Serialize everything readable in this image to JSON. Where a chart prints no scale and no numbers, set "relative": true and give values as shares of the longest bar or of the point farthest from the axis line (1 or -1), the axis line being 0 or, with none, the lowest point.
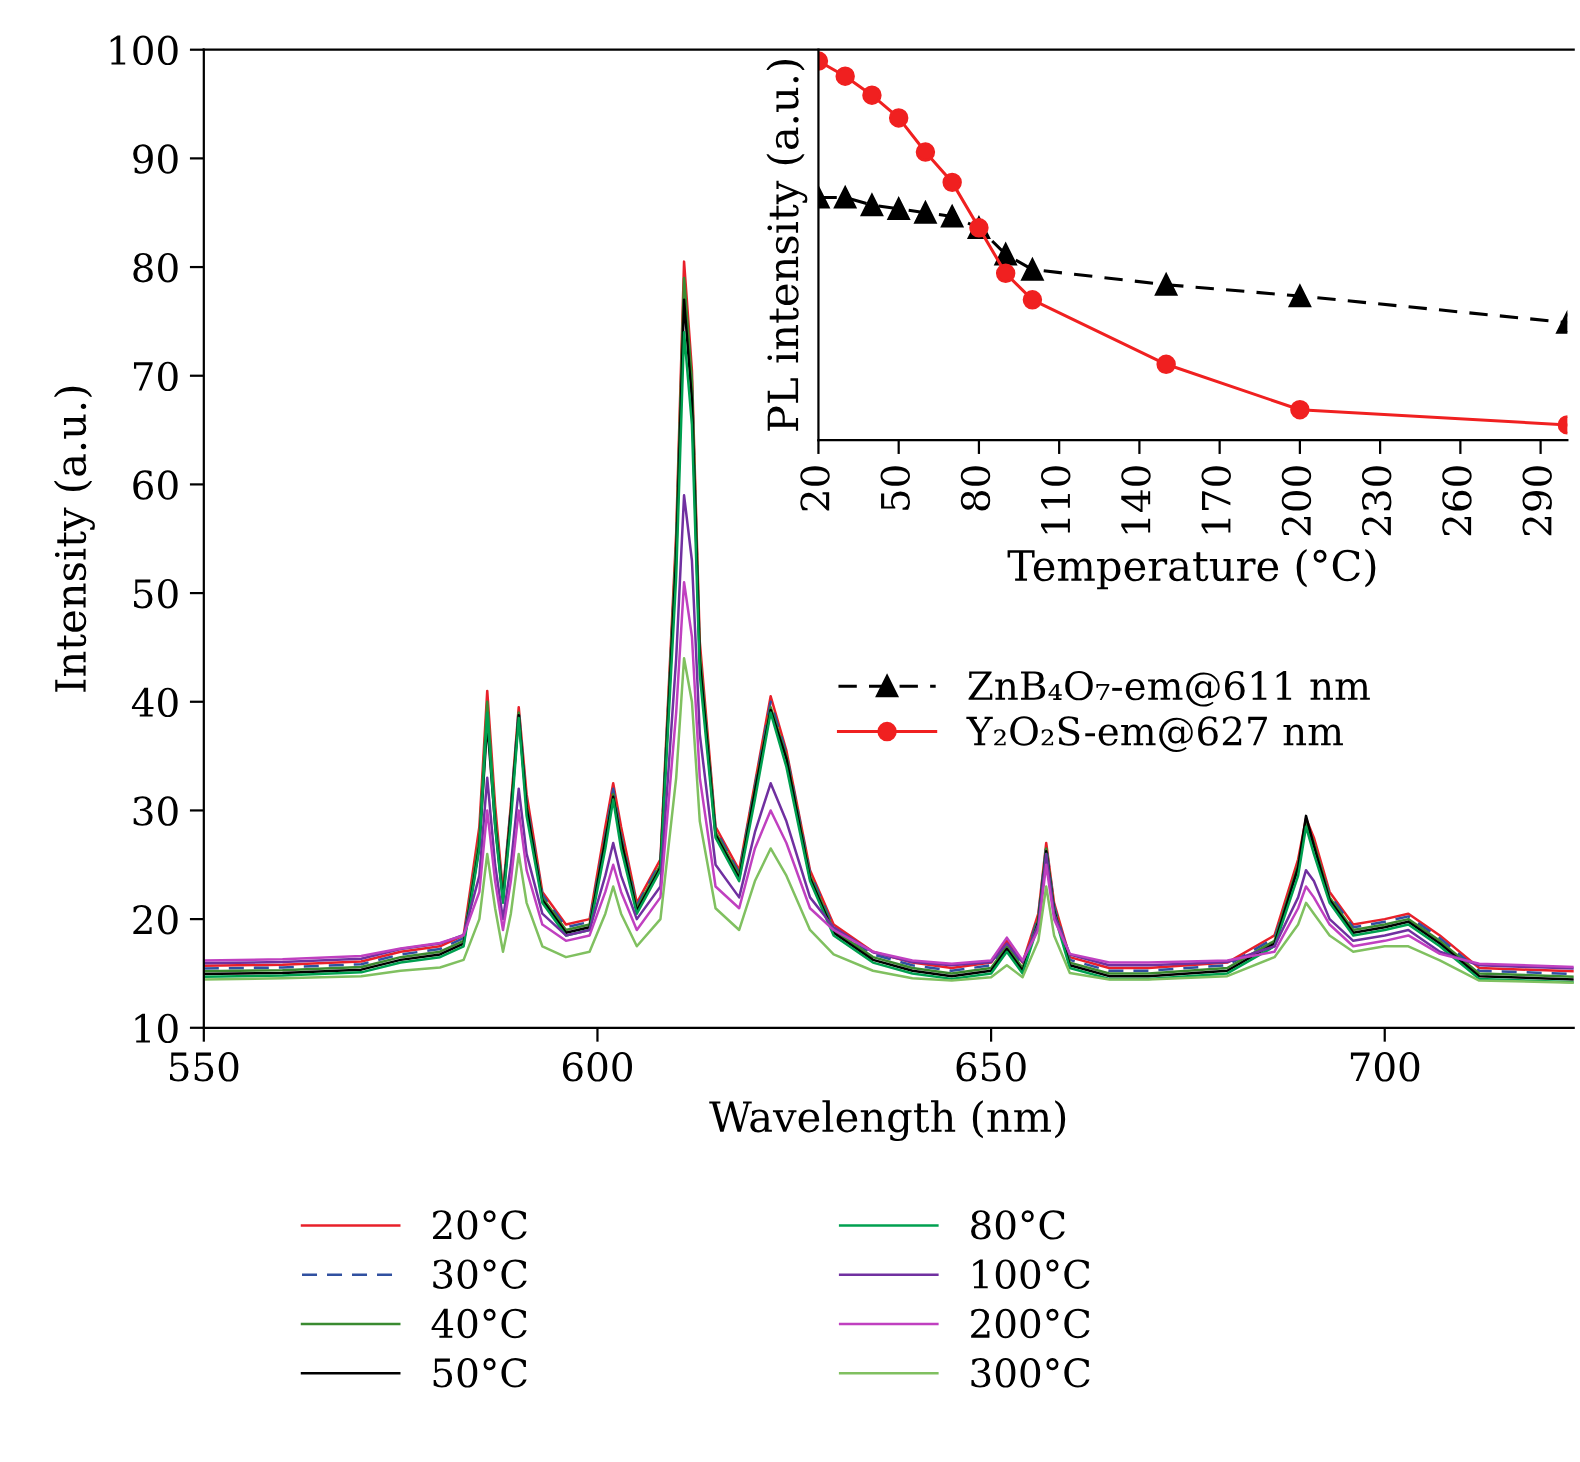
{
  "chart_data": [
    {
      "type": "line",
      "xlabel": "Wavelength (nm)",
      "ylabel": "Intensity (a.u.)",
      "xlim": [
        550,
        724
      ],
      "xticks": [
        550,
        600,
        650,
        700
      ],
      "ylim": [
        10,
        100
      ],
      "yticks": [
        10,
        20,
        30,
        40,
        50,
        60,
        70,
        80,
        90,
        100
      ],
      "legend": "bottom",
      "marker": "none",
      "x": [
        550,
        560,
        570,
        575,
        580,
        583,
        585,
        586,
        587,
        588,
        589,
        590,
        591,
        593,
        596,
        599,
        601,
        602,
        603,
        605,
        608,
        610,
        611,
        612,
        613,
        615,
        618,
        620,
        622,
        624,
        627,
        630,
        635,
        640,
        645,
        650,
        652,
        654,
        656,
        657,
        658,
        660,
        665,
        670,
        680,
        686,
        689,
        690,
        691,
        693,
        696,
        700,
        703,
        707,
        712,
        724
      ],
      "series": [
        {
          "name": "20°C",
          "color": "#e8202a",
          "line_style": "solid",
          "values": [
            15.7,
            15.8,
            16.1,
            17.0,
            17.5,
            18.5,
            28.5,
            41,
            30.5,
            22.5,
            30.5,
            39.5,
            31.5,
            22.5,
            19.5,
            20,
            28.5,
            32.5,
            28.5,
            21.5,
            25.5,
            55.5,
            80.5,
            70.5,
            45.5,
            28.5,
            24.5,
            32.5,
            40.5,
            35.5,
            24.5,
            19.5,
            17,
            16,
            15.5,
            16,
            18,
            16,
            20.5,
            27,
            21.5,
            16.5,
            15.5,
            15.5,
            16,
            18.5,
            25.5,
            29.25,
            27.5,
            22.5,
            19.5,
            20,
            20.5,
            18.5,
            15.5,
            15.2
          ]
        },
        {
          "name": "30°C",
          "color": "#3050a0",
          "line_style": "dashed",
          "values": [
            15.45,
            15.55,
            15.85,
            16.75,
            17.25,
            18.25,
            27.25,
            39.5,
            29.25,
            22.25,
            30.25,
            39.25,
            30.75,
            22.25,
            19.25,
            19.75,
            27.75,
            32,
            27.75,
            21.25,
            25.25,
            54.25,
            78,
            69.25,
            44.25,
            28.25,
            24.25,
            32.25,
            40,
            35.25,
            24.25,
            19.25,
            16.75,
            15.75,
            15.25,
            15.75,
            17.75,
            15.75,
            20.25,
            26.75,
            21.25,
            16.25,
            15.25,
            15.25,
            15.75,
            18.25,
            24.75,
            28.75,
            26.75,
            22.25,
            19.25,
            19.75,
            20.25,
            18.25,
            15.25,
            14.95
          ]
        },
        {
          "name": "40°C",
          "color": "#3a8a30",
          "line_style": "solid",
          "values": [
            15.2,
            15.3,
            15.6,
            16.5,
            17.0,
            18.0,
            27.5,
            40,
            29.5,
            22,
            30,
            39,
            30.5,
            22,
            19,
            19.5,
            27.5,
            31.5,
            27.5,
            21,
            25,
            54.5,
            79,
            69.5,
            44.5,
            28,
            24,
            32,
            39.5,
            35,
            24,
            19,
            16.5,
            15.5,
            15,
            15.5,
            17.5,
            15.5,
            20,
            26.5,
            21,
            16,
            15,
            15,
            15.5,
            18,
            25,
            29,
            27,
            22,
            19,
            19.5,
            20,
            18,
            15,
            14.7
          ]
        },
        {
          "name": "50°C",
          "color": "#000000",
          "line_style": "solid",
          "values": [
            14.95,
            15.05,
            15.35,
            16.25,
            16.75,
            17.75,
            26.75,
            38,
            28.75,
            21.75,
            29.75,
            38.75,
            30.25,
            21.75,
            18.75,
            19.25,
            27.25,
            31.25,
            27.25,
            20.75,
            24.75,
            53.25,
            77,
            67.75,
            43.75,
            27.75,
            23.75,
            31.75,
            39.25,
            34.75,
            23.75,
            18.75,
            16.25,
            15.25,
            14.75,
            15.25,
            17.25,
            15.25,
            19.75,
            26.25,
            20.75,
            15.75,
            14.75,
            14.75,
            15.25,
            17.75,
            24.75,
            29.5,
            26.75,
            21.75,
            18.75,
            19.25,
            19.75,
            17.75,
            14.75,
            14.45
          ]
        },
        {
          "name": "80°C",
          "color": "#00a050",
          "line_style": "solid",
          "values": [
            14.7,
            14.8,
            15.1,
            16.0,
            16.5,
            17.5,
            26.5,
            39,
            28.5,
            21.5,
            29,
            38.5,
            29.5,
            21.5,
            18.5,
            19,
            26.5,
            31,
            26.5,
            20.5,
            24.5,
            51.5,
            74,
            65.5,
            42.5,
            27.5,
            23.5,
            31,
            39,
            34,
            23.5,
            18.5,
            16,
            15,
            14.5,
            15,
            17,
            15,
            19.5,
            26,
            20.5,
            15.5,
            14.5,
            14.5,
            15,
            17.5,
            24,
            28.5,
            26,
            21.5,
            18.5,
            19,
            19.5,
            17.5,
            14.5,
            14.2
          ]
        },
        {
          "name": "100°C",
          "color": "#7030a0",
          "line_style": "solid",
          "values": [
            15.95,
            16.05,
            16.35,
            17.25,
            17.75,
            18.55,
            24,
            33,
            25,
            20,
            25,
            32,
            26,
            20.5,
            18.5,
            19,
            24,
            27,
            24,
            20,
            23,
            44,
            59,
            53,
            37,
            25,
            22,
            28,
            32.5,
            29,
            22,
            19.25,
            16.95,
            16.05,
            15.75,
            16.05,
            17.75,
            16.05,
            19.5,
            26,
            20.5,
            16.75,
            15.75,
            15.75,
            16.05,
            17.5,
            22,
            24.5,
            23.5,
            20,
            18,
            18.5,
            19,
            17,
            15.75,
            15.45
          ]
        },
        {
          "name": "200°C",
          "color": "#c040c0",
          "line_style": "solid",
          "values": [
            16.2,
            16.3,
            16.6,
            17.3,
            17.8,
            18.5,
            22.5,
            30,
            23.5,
            19,
            23.5,
            30,
            24.5,
            19.5,
            18,
            18.5,
            22.5,
            25,
            22.5,
            19,
            22,
            39,
            51,
            46,
            33,
            23,
            21,
            26.5,
            30,
            27,
            21,
            19,
            17,
            16.2,
            15.9,
            16.2,
            18.3,
            16.2,
            19,
            25,
            20,
            16.8,
            16,
            16,
            16.2,
            17,
            21,
            23,
            22,
            19.5,
            17.5,
            18,
            18.5,
            16.8,
            15.9,
            15.6
          ]
        },
        {
          "name": "300°C",
          "color": "#80c060",
          "line_style": "solid",
          "values": [
            14.45,
            14.55,
            14.75,
            15.25,
            15.55,
            16.25,
            20,
            26,
            21,
            17,
            20.5,
            26,
            21.5,
            17.5,
            16.5,
            17,
            20.5,
            23,
            20.5,
            17.5,
            20,
            33,
            44,
            40,
            29,
            21,
            19,
            23.5,
            26.5,
            24,
            19,
            16.75,
            15.25,
            14.55,
            14.35,
            14.65,
            15.75,
            14.65,
            18,
            23,
            18.5,
            15.05,
            14.45,
            14.45,
            14.75,
            16.5,
            19.5,
            21.5,
            20.5,
            18.5,
            17,
            17.5,
            17.5,
            16.2,
            14.35,
            14.15
          ]
        }
      ]
    },
    {
      "type": "line",
      "xlabel": "Temperature (°C)",
      "ylabel": "PL intensity (a.u.)",
      "xlim": [
        20,
        300
      ],
      "xticks": [
        20,
        50,
        80,
        110,
        140,
        170,
        200,
        230,
        260,
        290
      ],
      "relative": true,
      "legend": "bottom",
      "x": [
        20,
        30,
        40,
        50,
        60,
        70,
        80,
        90,
        100,
        150,
        200,
        300
      ],
      "series": [
        {
          "name": "ZnB₄O₇-em@611 nm",
          "color": "#000000",
          "line_style": "dashed",
          "marker": "triangle",
          "values": [
            0.64,
            0.64,
            0.62,
            0.61,
            0.6,
            0.59,
            0.56,
            0.49,
            0.45,
            0.41,
            0.38,
            0.31
          ]
        },
        {
          "name": "Y₂O₂S-em@627 nm",
          "color": "#f02020",
          "line_style": "solid",
          "marker": "circle",
          "values": [
            1.0,
            0.96,
            0.91,
            0.85,
            0.76,
            0.68,
            0.56,
            0.44,
            0.37,
            0.2,
            0.08,
            0.04
          ]
        }
      ]
    }
  ]
}
